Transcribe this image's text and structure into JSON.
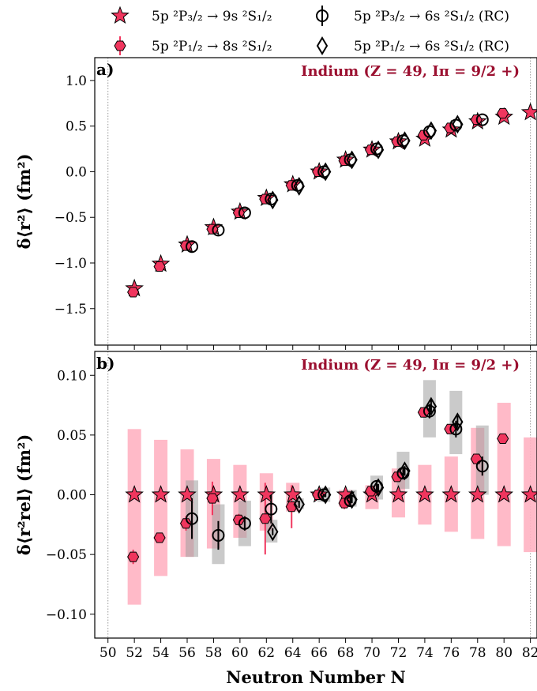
{
  "colors": {
    "stable": "#f0365e",
    "stable_band": "#ffb3c2",
    "rc_band": "#9e9e9e",
    "marker_edge": "#000000"
  },
  "legend": {
    "entries": [
      {
        "marker": "star",
        "label": "5p ²P₃/₂ → 9s ²S₁/₂"
      },
      {
        "marker": "circle-open",
        "label": "5p ²P₃/₂ → 6s ²S₁/₂ (RC)"
      },
      {
        "marker": "hexagon",
        "label": "5p ²P₁/₂ → 8s ²S₁/₂"
      },
      {
        "marker": "diamond-open",
        "label": "5p ²P₁/₂ → 6s ²S₁/₂ (RC)"
      }
    ]
  },
  "chart_data": [
    {
      "type": "scatter",
      "panel": "a)",
      "annotation": "Indium (Z = 49, Iπ = 9/2 +)",
      "ylabel": "δ⟨r²⟩ (fm²)",
      "xlabel": "",
      "xlim": [
        49,
        82.5
      ],
      "ylim": [
        -1.9,
        1.25
      ],
      "yticks": [
        "−1.5",
        "−1.0",
        "−0.5",
        "0.0",
        "0.5",
        "1.0"
      ],
      "ytick_values": [
        -1.5,
        -1.0,
        -0.5,
        0.0,
        0.5,
        1.0
      ],
      "vlines": [
        50,
        82
      ],
      "series": [
        {
          "name": "5p ²P₃/₂ → 9s ²S₁/₂",
          "marker": "star",
          "x": [
            52,
            54,
            56,
            58,
            60,
            62,
            64,
            66,
            68,
            70,
            72,
            74,
            76,
            78,
            80,
            82
          ],
          "y": [
            -1.28,
            -1.01,
            -0.8,
            -0.61,
            -0.44,
            -0.29,
            -0.14,
            0.0,
            0.13,
            0.24,
            0.33,
            0.36,
            0.46,
            0.55,
            0.6,
            0.65
          ]
        },
        {
          "name": "5p ²P₁/₂ → 8s ²S₁/₂",
          "marker": "hexagon",
          "x": [
            52,
            54,
            56,
            58,
            60,
            62,
            64,
            66,
            68,
            70,
            72,
            74,
            76,
            78,
            80
          ],
          "y": [
            -1.32,
            -1.04,
            -0.81,
            -0.63,
            -0.45,
            -0.3,
            -0.15,
            0.0,
            0.12,
            0.24,
            0.33,
            0.4,
            0.48,
            0.57,
            0.64
          ]
        },
        {
          "name": "5p ²P₃/₂ → 6s ²S₁/₂ (RC)",
          "marker": "circle-open",
          "x": [
            56,
            58,
            60,
            62,
            64,
            66,
            68,
            70,
            72,
            74,
            76,
            78
          ],
          "y": [
            -0.82,
            -0.64,
            -0.45,
            -0.3,
            -0.15,
            0.0,
            0.13,
            0.25,
            0.34,
            0.44,
            0.51,
            0.57
          ]
        },
        {
          "name": "5p ²P₁/₂ → 6s ²S₁/₂ (RC)",
          "marker": "diamond-open",
          "x": [
            62,
            64,
            66,
            68,
            70,
            72,
            74,
            76
          ],
          "y": [
            -0.31,
            -0.16,
            0.0,
            0.13,
            0.24,
            0.34,
            0.45,
            0.52
          ]
        }
      ]
    },
    {
      "type": "scatter",
      "panel": "b)",
      "annotation": "Indium (Z = 49, Iπ = 9/2 +)",
      "ylabel": "δ⟨r²rel⟩ (fm²)",
      "xlabel": "Neutron Number N",
      "xlim": [
        49,
        82.5
      ],
      "ylim": [
        -0.12,
        0.12
      ],
      "xticks": [
        "50",
        "52",
        "54",
        "56",
        "58",
        "60",
        "62",
        "64",
        "66",
        "68",
        "70",
        "72",
        "74",
        "76",
        "78",
        "80",
        "82"
      ],
      "xtick_values": [
        50,
        52,
        54,
        56,
        58,
        60,
        62,
        64,
        66,
        68,
        70,
        72,
        74,
        76,
        78,
        80,
        82
      ],
      "yticks": [
        "−0.10",
        "−0.05",
        "0.00",
        "0.05",
        "0.10"
      ],
      "ytick_values": [
        -0.1,
        -0.05,
        0.0,
        0.05,
        0.1
      ],
      "vlines": [
        50,
        82
      ],
      "bands": [
        {
          "group": "stable",
          "x": 52,
          "low": -0.092,
          "high": 0.055
        },
        {
          "group": "stable",
          "x": 54,
          "low": -0.068,
          "high": 0.046
        },
        {
          "group": "stable",
          "x": 56,
          "low": -0.052,
          "high": 0.038
        },
        {
          "group": "stable",
          "x": 58,
          "low": -0.045,
          "high": 0.03
        },
        {
          "group": "stable",
          "x": 60,
          "low": -0.036,
          "high": 0.025
        },
        {
          "group": "stable",
          "x": 62,
          "low": -0.03,
          "high": 0.018
        },
        {
          "group": "stable",
          "x": 64,
          "low": -0.014,
          "high": 0.01
        },
        {
          "group": "stable",
          "x": 68,
          "low": -0.01,
          "high": 0.004
        },
        {
          "group": "stable",
          "x": 70,
          "low": -0.012,
          "high": 0.008
        },
        {
          "group": "stable",
          "x": 72,
          "low": -0.019,
          "high": 0.022
        },
        {
          "group": "stable",
          "x": 74,
          "low": -0.025,
          "high": 0.025
        },
        {
          "group": "stable",
          "x": 76,
          "low": -0.031,
          "high": 0.032
        },
        {
          "group": "stable",
          "x": 78,
          "low": -0.037,
          "high": 0.056
        },
        {
          "group": "stable",
          "x": 80,
          "low": -0.043,
          "high": 0.077
        },
        {
          "group": "stable",
          "x": 82,
          "low": -0.048,
          "high": 0.048
        },
        {
          "group": "rc",
          "x": 56,
          "low": -0.052,
          "high": 0.012
        },
        {
          "group": "rc",
          "x": 58,
          "low": -0.058,
          "high": -0.008
        },
        {
          "group": "rc",
          "x": 60,
          "low": -0.043,
          "high": -0.005
        },
        {
          "group": "rc",
          "x": 62,
          "low": -0.04,
          "high": -0.021
        },
        {
          "group": "rc",
          "x": 64,
          "low": -0.012,
          "high": -0.003
        },
        {
          "group": "rc",
          "x": 66,
          "low": -0.006,
          "high": 0.006
        },
        {
          "group": "rc",
          "x": 68,
          "low": -0.01,
          "high": 0.004
        },
        {
          "group": "rc",
          "x": 70,
          "low": -0.004,
          "high": 0.016
        },
        {
          "group": "rc",
          "x": 72,
          "low": 0.005,
          "high": 0.036
        },
        {
          "group": "rc",
          "x": 74,
          "low": 0.048,
          "high": 0.096
        },
        {
          "group": "rc",
          "x": 76,
          "low": 0.034,
          "high": 0.087
        },
        {
          "group": "rc",
          "x": 78,
          "low": 0.0,
          "high": 0.058
        }
      ],
      "series": [
        {
          "name": "5p ²P₃/₂ → 9s ²S₁/₂",
          "marker": "star",
          "x": [
            52,
            54,
            56,
            58,
            60,
            62,
            64,
            66,
            68,
            70,
            72,
            74,
            76,
            78,
            80,
            82
          ],
          "y": [
            0,
            0,
            0,
            0,
            0,
            0,
            0,
            0,
            0,
            0,
            0,
            0,
            0,
            0,
            0,
            0
          ]
        },
        {
          "name": "5p ²P₁/₂ → 8s ²S₁/₂",
          "marker": "hexagon",
          "x": [
            52,
            54,
            56,
            58,
            60,
            62,
            64,
            66,
            68,
            70,
            72,
            74,
            76,
            78,
            80
          ],
          "y": [
            -0.052,
            -0.036,
            -0.024,
            -0.003,
            -0.021,
            -0.02,
            -0.01,
            0.0,
            -0.007,
            0.003,
            0.015,
            0.069,
            0.055,
            0.03,
            0.047
          ],
          "err": [
            0.006,
            0.004,
            0.006,
            0.014,
            0.005,
            0.03,
            0.018,
            0.003,
            0.005,
            0.003,
            0.004,
            0.004,
            0.004,
            0.004,
            0.003
          ]
        },
        {
          "name": "5p ²P₃/₂ → 6s ²S₁/₂ (RC)",
          "marker": "circle-open",
          "x": [
            56,
            58,
            60,
            62,
            66,
            68,
            70,
            72,
            74,
            76,
            78
          ],
          "y": [
            -0.02,
            -0.034,
            -0.024,
            -0.012,
            0.0,
            -0.005,
            0.007,
            0.018,
            0.07,
            0.055,
            0.024
          ],
          "err": [
            0.017,
            0.012,
            0.006,
            0.012,
            0.002,
            0.004,
            0.004,
            0.005,
            0.006,
            0.007,
            0.008
          ]
        },
        {
          "name": "5p ²P₁/₂ → 6s ²S₁/₂ (RC)",
          "marker": "diamond-open",
          "x": [
            62,
            64,
            66,
            68,
            70,
            72,
            74,
            76
          ],
          "y": [
            -0.031,
            -0.008,
            0.0,
            -0.004,
            0.006,
            0.02,
            0.074,
            0.061
          ],
          "err": [
            0.003,
            0.003,
            0.002,
            0.003,
            0.003,
            0.004,
            0.005,
            0.005
          ]
        }
      ]
    }
  ]
}
